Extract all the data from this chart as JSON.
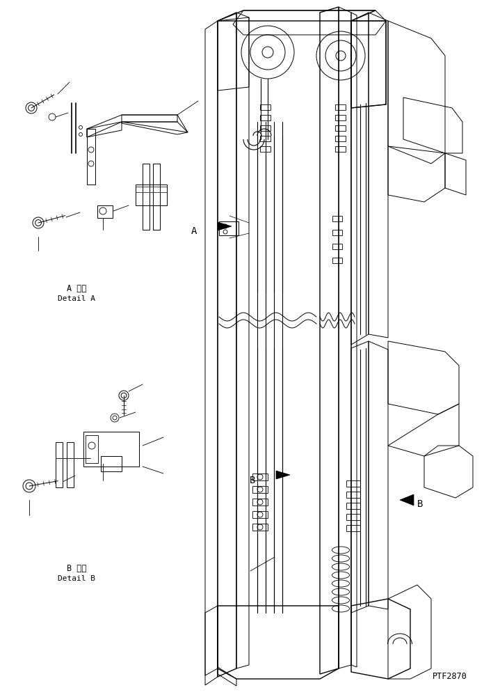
{
  "background_color": "#ffffff",
  "line_color": "#000000",
  "text_color": "#000000",
  "fig_width": 6.96,
  "fig_height": 10.01,
  "dpi": 100,
  "label_A_japanese": "A 詳細",
  "label_A_english": "Detail A",
  "label_B_japanese": "B 詳細",
  "label_B_english": "Detail B",
  "watermark": "PTF2870"
}
